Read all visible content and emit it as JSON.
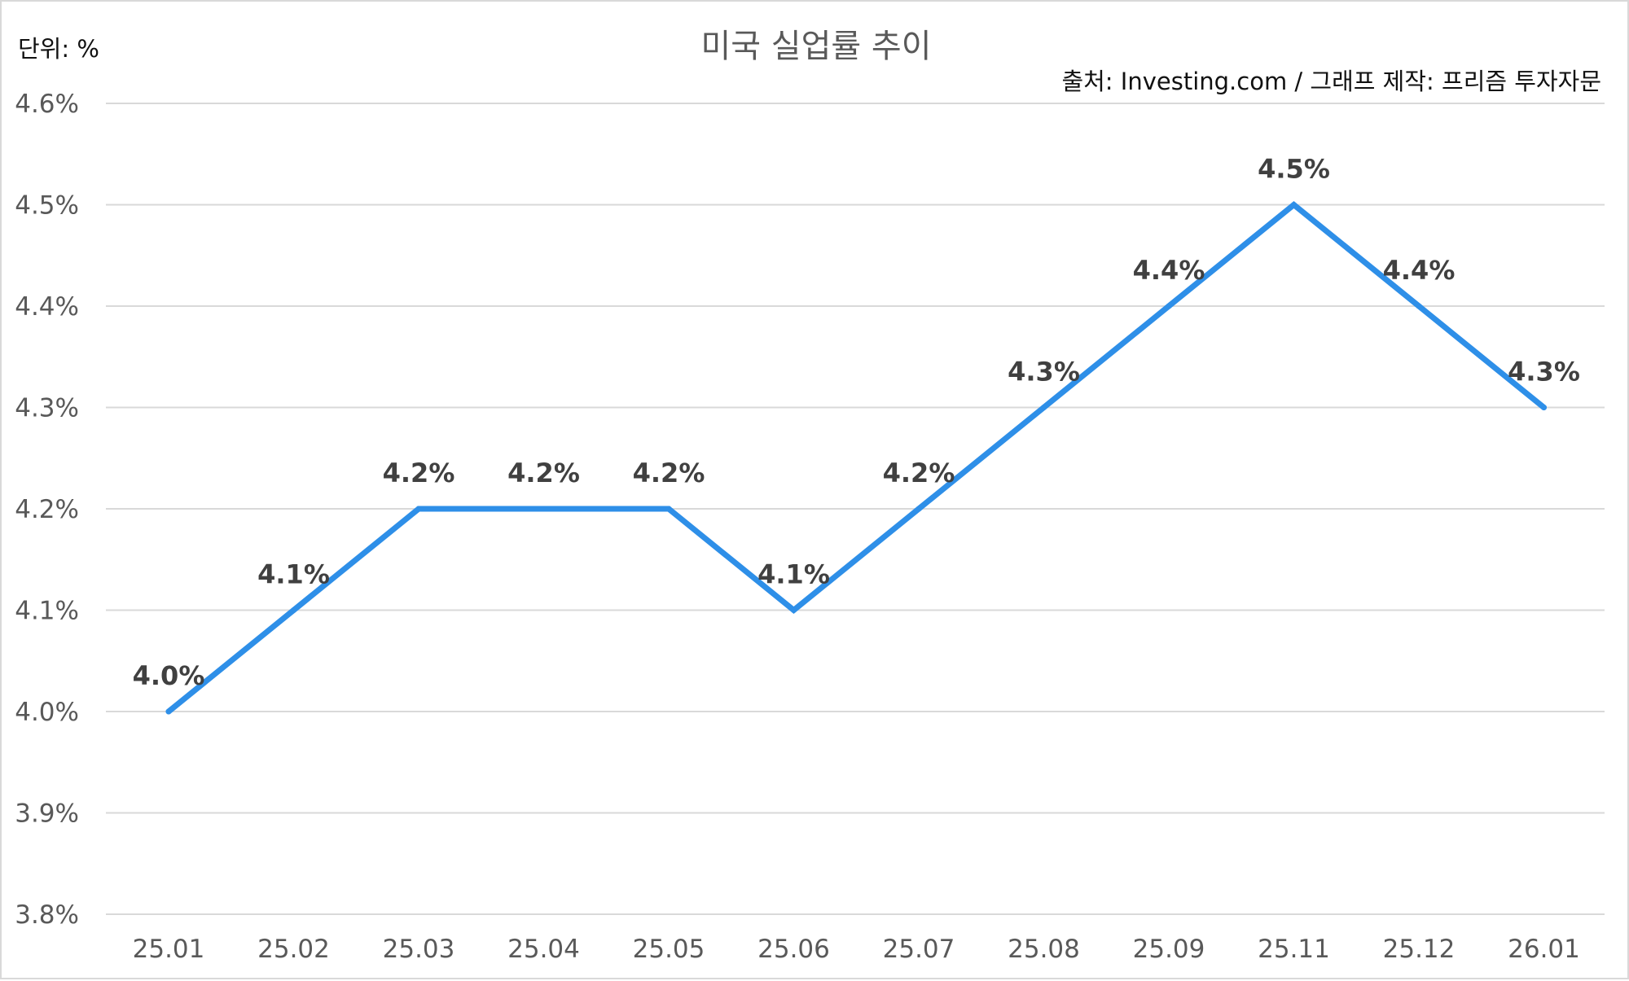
{
  "chart_data": {
    "type": "line",
    "title": "미국 실업률 추이",
    "unit_label": "단위: %",
    "source_label": "출처: Investing.com / 그래프 제작: 프리즘 투자자문",
    "categories": [
      "25.01",
      "25.02",
      "25.03",
      "25.04",
      "25.05",
      "25.06",
      "25.07",
      "25.08",
      "25.09",
      "25.11",
      "25.12",
      "26.01"
    ],
    "series": [
      {
        "values": [
          4.0,
          4.1,
          4.2,
          4.2,
          4.2,
          4.1,
          4.2,
          4.3,
          4.4,
          4.5,
          4.4,
          4.3
        ],
        "labels": [
          "4.0%",
          "4.1%",
          "4.2%",
          "4.2%",
          "4.2%",
          "4.1%",
          "4.2%",
          "4.3%",
          "4.4%",
          "4.5%",
          "4.4%",
          "4.3%"
        ],
        "color": "#2e8fe8"
      }
    ],
    "ylim": [
      3.8,
      4.6
    ],
    "y_ticks": [
      3.8,
      3.9,
      4.0,
      4.1,
      4.2,
      4.3,
      4.4,
      4.5,
      4.6
    ],
    "y_tick_labels": [
      "3.8%",
      "3.9%",
      "4.0%",
      "4.1%",
      "4.2%",
      "4.3%",
      "4.4%",
      "4.5%",
      "4.6%"
    ],
    "grid": true,
    "legend": "none"
  }
}
